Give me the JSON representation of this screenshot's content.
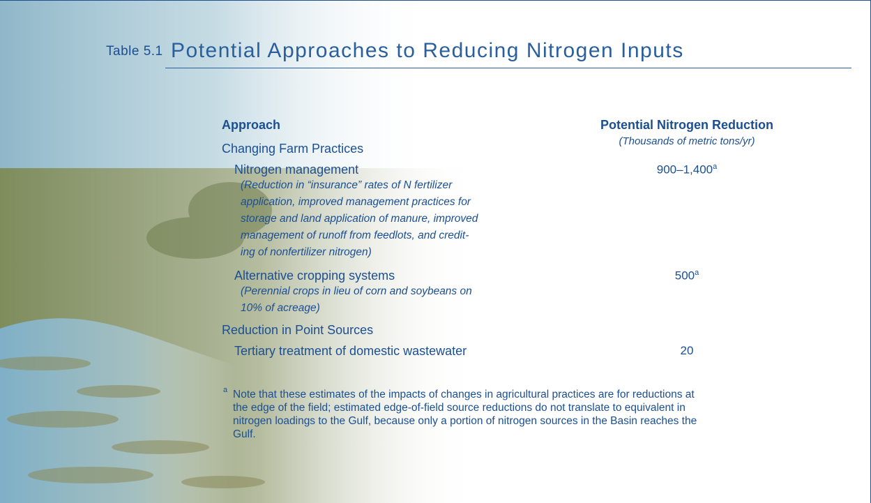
{
  "title": {
    "label": "Table 5.1",
    "text": "Potential Approaches to Reducing Nitrogen Inputs"
  },
  "table": {
    "headers": {
      "approach": "Approach",
      "reduction": "Potential Nitrogen Reduction",
      "reduction_unit": "(Thousands of metric tons/yr)"
    },
    "sections": [
      {
        "name": "Changing Farm Practices",
        "rows": [
          {
            "name": "Nitrogen management",
            "value": "900–1,400",
            "note": "a",
            "description": [
              "(Reduction in “insurance” rates of N fertilizer",
              "application, improved management practices for",
              "storage and land application of manure, improved",
              "management of runoff from feedlots, and credit-",
              "ing of nonfertilizer nitrogen)"
            ]
          },
          {
            "name": "Alternative cropping systems",
            "value": "500",
            "note": "a",
            "description": [
              "(Perennial crops in lieu of corn and soybeans on",
              "10% of acreage)"
            ]
          }
        ]
      },
      {
        "name": "Reduction in Point Sources",
        "rows": [
          {
            "name": "Tertiary treatment of domestic wastewater",
            "value": "20"
          }
        ]
      }
    ]
  },
  "footnote": {
    "mark": "a",
    "lines": [
      "Note that these estimates of the impacts of changes in agricultural practices are for reductions at",
      "the edge of the field; estimated edge-of-field source reductions do not translate to equivalent in",
      "nitrogen loadings to the Gulf, because only a portion of nitrogen sources in the Basin reaches the",
      "Gulf."
    ]
  }
}
